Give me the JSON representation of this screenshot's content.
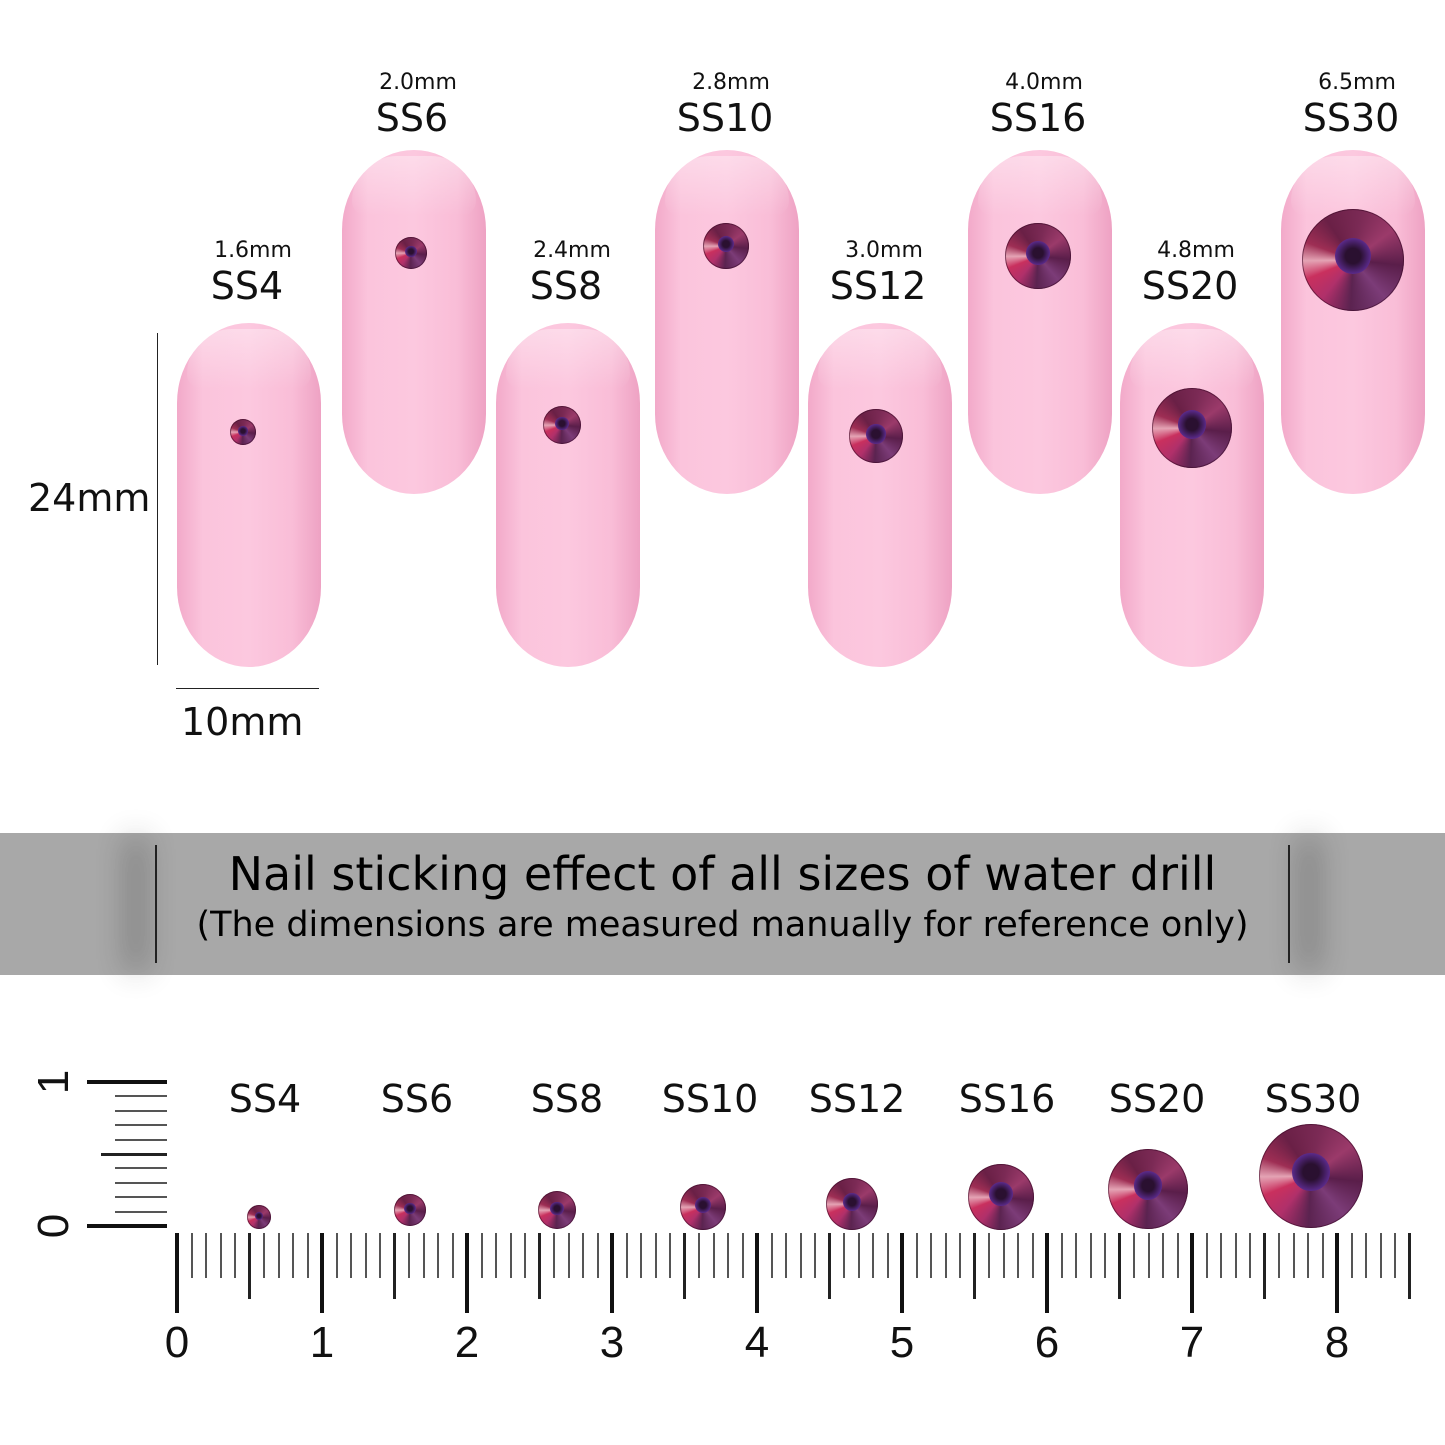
{
  "sizes": [
    {
      "code": "SS4",
      "mm": "1.6mm",
      "diameter_mm": 1.6
    },
    {
      "code": "SS6",
      "mm": "2.0mm",
      "diameter_mm": 2.0
    },
    {
      "code": "SS8",
      "mm": "2.4mm",
      "diameter_mm": 2.4
    },
    {
      "code": "SS10",
      "mm": "2.8mm",
      "diameter_mm": 2.8
    },
    {
      "code": "SS12",
      "mm": "3.0mm",
      "diameter_mm": 3.0
    },
    {
      "code": "SS16",
      "mm": "4.0mm",
      "diameter_mm": 4.0
    },
    {
      "code": "SS20",
      "mm": "4.8mm",
      "diameter_mm": 4.8
    },
    {
      "code": "SS30",
      "mm": "6.5mm",
      "diameter_mm": 6.5
    }
  ],
  "nail_dimensions": {
    "height": "24mm",
    "width": "10mm"
  },
  "banner": {
    "title": "Nail sticking effect of all sizes of water drill",
    "subtitle": "(The dimensions are measured manually for reference only)"
  },
  "ruler": {
    "horizontal_labels": [
      "0",
      "1",
      "2",
      "3",
      "4",
      "5",
      "6",
      "7",
      "8"
    ],
    "vertical_labels": [
      "0",
      "1"
    ]
  },
  "colors": {
    "nail": "#fcc8df",
    "gem": "#7b2a55",
    "banner": "#a8a8a8"
  }
}
